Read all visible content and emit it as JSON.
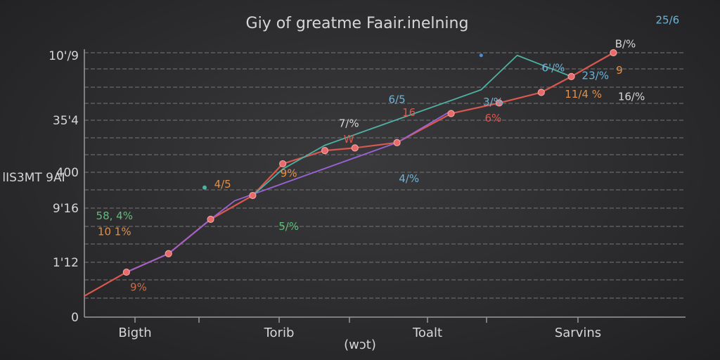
{
  "chart_data": {
    "type": "line",
    "title": "Giy of greatme Faair.inelning",
    "ylabel": "lIS3MT 9AI",
    "xlabel": "(wɔt)",
    "ylim": [
      0,
      1000
    ],
    "xlim": [
      0,
      100
    ],
    "y_tick_labels": [
      "0",
      "1'12",
      "9'16",
      "400",
      "35'4",
      "10'/9"
    ],
    "x_tick_labels": [
      "Bigth",
      "Torib",
      "Toalt",
      "Sarvins"
    ],
    "grid": true,
    "colors": {
      "background": "#2c2c2e",
      "grid": "#6f6f6f",
      "main_line": "#d9584f",
      "purple": "#9a63d6",
      "teal": "#4fb0a3",
      "blue": "#4a8fd6",
      "marker": "#e86a6a"
    },
    "series": [
      {
        "color": "#d9584f",
        "x": [
          0,
          7,
          14,
          21,
          28,
          33,
          40,
          45,
          52,
          61,
          69,
          76,
          81,
          88
        ],
        "y": [
          80,
          170,
          240,
          370,
          460,
          580,
          630,
          640,
          660,
          770,
          810,
          850,
          910,
          1000
        ]
      },
      {
        "color": "#9a63d6",
        "x": [
          7,
          14,
          21,
          25,
          52,
          61
        ],
        "y": [
          170,
          240,
          370,
          440,
          660,
          780
        ]
      },
      {
        "color": "#4fb0a3",
        "x": [
          28,
          33,
          40,
          66,
          72,
          81
        ],
        "y": [
          460,
          560,
          650,
          860,
          990,
          910
        ]
      }
    ],
    "annotations": [
      {
        "text": "58, 4%",
        "x": 5,
        "y": 370,
        "color": "#5fbf7a"
      },
      {
        "text": "10  1%",
        "x": 5,
        "y": 310,
        "color": "#e0904a"
      },
      {
        "text": "9%",
        "x": 9,
        "y": 100,
        "color": "#c86e4a"
      },
      {
        "text": "4/5",
        "x": 23,
        "y": 490,
        "color": "#e0904a"
      },
      {
        "text": "9%",
        "x": 34,
        "y": 530,
        "color": "#e0904a"
      },
      {
        "text": "5/%",
        "x": 34,
        "y": 330,
        "color": "#5fbf7a"
      },
      {
        "text": "7/%",
        "x": 44,
        "y": 720,
        "color": "#d6d6d6"
      },
      {
        "text": "W",
        "x": 44,
        "y": 660,
        "color": "#d9584f"
      },
      {
        "text": "6/5",
        "x": 52,
        "y": 810,
        "color": "#6fb3d6"
      },
      {
        "text": "16",
        "x": 54,
        "y": 760,
        "color": "#d9584f"
      },
      {
        "text": "4/%",
        "x": 54,
        "y": 510,
        "color": "#6fb3d6"
      },
      {
        "text": "3/%",
        "x": 68,
        "y": 800,
        "color": "#6fb3d6"
      },
      {
        "text": "6%",
        "x": 68,
        "y": 740,
        "color": "#d9584f"
      },
      {
        "text": "6'/%",
        "x": 78,
        "y": 930,
        "color": "#6fb3d6"
      },
      {
        "text": "23/%",
        "x": 85,
        "y": 900,
        "color": "#6fb3d6"
      },
      {
        "text": "9",
        "x": 89,
        "y": 920,
        "color": "#e0904a"
      },
      {
        "text": "11/4 %",
        "x": 83,
        "y": 830,
        "color": "#e0904a"
      },
      {
        "text": "16/%",
        "x": 91,
        "y": 820,
        "color": "#d6d6d6"
      },
      {
        "text": "B/%",
        "x": 90,
        "y": 1020,
        "color": "#d6d6d6"
      },
      {
        "text": "25/6",
        "x": 97,
        "y": 1110,
        "color": "#6fb3d6"
      }
    ]
  }
}
